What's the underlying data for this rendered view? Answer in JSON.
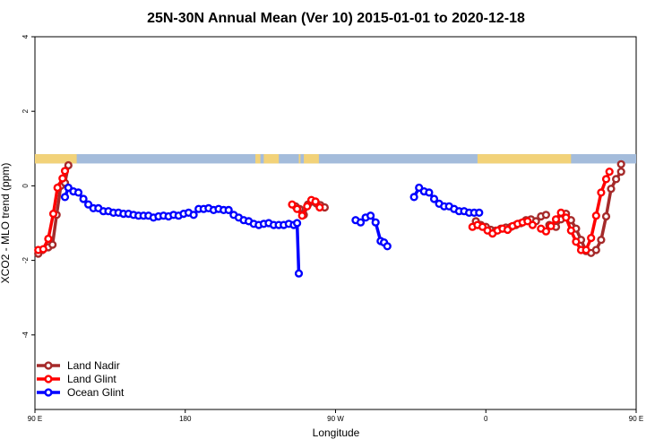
{
  "chart_data": {
    "type": "line",
    "title": "25N-30N Annual Mean (Ver 10)   2015-01-01 to 2020-12-18",
    "xlabel": "Longitude",
    "ylabel": "XCO2 - MLO trend (ppm)",
    "xlim": [
      90,
      450
    ],
    "ylim": [
      -6,
      4
    ],
    "x_ticks": [
      {
        "value": 90,
        "label": "90 E"
      },
      {
        "value": 180,
        "label": "180"
      },
      {
        "value": 270,
        "label": "90 W"
      },
      {
        "value": 360,
        "label": "0"
      },
      {
        "value": 450,
        "label": "90 E"
      },
      {
        "value": 540,
        "label": "180"
      }
    ],
    "y_ticks": [
      {
        "value": 4,
        "label": "4"
      },
      {
        "value": 2,
        "label": "2"
      },
      {
        "value": 0,
        "label": "0"
      },
      {
        "value": -2,
        "label": "-2"
      },
      {
        "value": -4,
        "label": "-4"
      }
    ],
    "land_ocean_band": {
      "ymin": 0.6,
      "ymax": 0.85,
      "ocean_color": "#A4BCDB",
      "land_color": "#F2D279",
      "land_spans": [
        [
          90,
          115
        ],
        [
          222,
          225
        ],
        [
          227,
          236
        ],
        [
          248,
          249
        ],
        [
          251,
          260
        ],
        [
          355,
          411
        ],
        [
          451,
          471
        ],
        [
          636,
          655
        ]
      ]
    },
    "legend": {
      "placement": "bottom-left",
      "entries": [
        "Land Nadir",
        "Land Glint",
        "Ocean Glint"
      ]
    },
    "series": [
      {
        "name": "Land Nadir",
        "color": "#A52A2A",
        "segments": [
          [
            [
              92,
              -1.82
            ],
            [
              94.5,
              -1.72
            ],
            [
              98,
              -1.65
            ],
            [
              100.5,
              -1.58
            ],
            [
              103,
              -0.78
            ],
            [
              105.5,
              0.0
            ],
            [
              108,
              0.08
            ],
            [
              110,
              0.55
            ]
          ],
          [
            [
              246,
              -0.55
            ],
            [
              248.5,
              -0.62
            ],
            [
              251,
              -0.78
            ],
            [
              253.5,
              -0.5
            ],
            [
              256,
              -0.42
            ],
            [
              258.5,
              -0.47
            ],
            [
              261,
              -0.52
            ],
            [
              263.5,
              -0.58
            ]
          ],
          [
            [
              354,
              -0.95
            ],
            [
              357,
              -1.05
            ],
            [
              360,
              -1.1
            ],
            [
              363,
              -1.18
            ],
            [
              366,
              -1.2
            ],
            [
              369,
              -1.15
            ],
            [
              372,
              -1.12
            ],
            [
              375,
              -1.1
            ],
            [
              378,
              -1.05
            ],
            [
              381,
              -1.0
            ],
            [
              384,
              -0.92
            ],
            [
              387,
              -0.9
            ],
            [
              390,
              -0.95
            ],
            [
              393,
              -0.82
            ],
            [
              396,
              -0.78
            ]
          ],
          [
            [
              398,
              -1.05
            ],
            [
              402,
              -1.1
            ],
            [
              405,
              -0.9
            ],
            [
              408,
              -0.75
            ],
            [
              411,
              -0.92
            ],
            [
              414,
              -1.15
            ],
            [
              417,
              -1.45
            ],
            [
              420,
              -1.75
            ],
            [
              423,
              -1.8
            ],
            [
              426,
              -1.72
            ],
            [
              429,
              -1.45
            ],
            [
              432,
              -0.82
            ],
            [
              435,
              -0.08
            ],
            [
              438,
              0.18
            ],
            [
              441,
              0.38
            ],
            [
              441,
              0.58
            ]
          ]
        ]
      },
      {
        "name": "Land Glint",
        "color": "#FF0000",
        "segments": [
          [
            [
              92,
              -1.72
            ],
            [
              95,
              -1.7
            ],
            [
              98,
              -1.42
            ],
            [
              101,
              -0.75
            ],
            [
              103.5,
              -0.05
            ],
            [
              106.5,
              0.2
            ],
            [
              108,
              0.4
            ]
          ],
          [
            [
              244,
              -0.5
            ],
            [
              247,
              -0.62
            ],
            [
              250,
              -0.8
            ],
            [
              253,
              -0.55
            ],
            [
              255.5,
              -0.38
            ],
            [
              258,
              -0.42
            ],
            [
              260.5,
              -0.58
            ]
          ],
          [
            [
              352,
              -1.1
            ],
            [
              355,
              -1.05
            ],
            [
              358,
              -1.1
            ],
            [
              361,
              -1.2
            ],
            [
              364,
              -1.28
            ],
            [
              367,
              -1.2
            ],
            [
              370,
              -1.15
            ],
            [
              373,
              -1.18
            ],
            [
              376,
              -1.08
            ],
            [
              379,
              -1.02
            ],
            [
              382,
              -0.98
            ],
            [
              385,
              -0.95
            ],
            [
              388,
              -1.05
            ]
          ],
          [
            [
              393,
              -1.15
            ],
            [
              396,
              -1.22
            ],
            [
              399,
              -1.08
            ],
            [
              402,
              -0.9
            ],
            [
              405,
              -0.72
            ],
            [
              408,
              -0.85
            ],
            [
              411,
              -1.2
            ],
            [
              414,
              -1.5
            ],
            [
              417,
              -1.72
            ],
            [
              420,
              -1.72
            ],
            [
              423,
              -1.4
            ],
            [
              426,
              -0.8
            ],
            [
              429,
              -0.18
            ],
            [
              432,
              0.18
            ],
            [
              434,
              0.38
            ]
          ]
        ]
      },
      {
        "name": "Ocean Glint",
        "color": "#0000FF",
        "segments": [
          [
            [
              108,
              -0.3
            ],
            [
              110,
              -0.05
            ],
            [
              113,
              -0.15
            ],
            [
              116,
              -0.18
            ],
            [
              119,
              -0.35
            ],
            [
              122,
              -0.5
            ],
            [
              125,
              -0.6
            ],
            [
              128,
              -0.6
            ],
            [
              131,
              -0.68
            ],
            [
              134,
              -0.68
            ],
            [
              137,
              -0.72
            ],
            [
              140,
              -0.72
            ],
            [
              143,
              -0.75
            ],
            [
              146,
              -0.75
            ],
            [
              149,
              -0.78
            ],
            [
              152,
              -0.8
            ],
            [
              155,
              -0.8
            ],
            [
              158,
              -0.8
            ],
            [
              161,
              -0.85
            ],
            [
              164,
              -0.82
            ],
            [
              167,
              -0.8
            ],
            [
              170,
              -0.82
            ],
            [
              173,
              -0.78
            ],
            [
              176,
              -0.8
            ],
            [
              179,
              -0.75
            ],
            [
              182,
              -0.72
            ],
            [
              185,
              -0.78
            ],
            [
              188,
              -0.62
            ],
            [
              191,
              -0.62
            ],
            [
              194,
              -0.6
            ],
            [
              197,
              -0.65
            ],
            [
              200,
              -0.62
            ],
            [
              203,
              -0.65
            ],
            [
              206,
              -0.65
            ],
            [
              209,
              -0.78
            ],
            [
              212,
              -0.85
            ],
            [
              215,
              -0.92
            ],
            [
              218,
              -0.95
            ],
            [
              221,
              -1.02
            ],
            [
              224,
              -1.05
            ],
            [
              227,
              -1.02
            ],
            [
              230,
              -1.0
            ],
            [
              233,
              -1.05
            ],
            [
              236,
              -1.05
            ],
            [
              239,
              -1.05
            ],
            [
              242,
              -1.02
            ],
            [
              245,
              -1.05
            ],
            [
              247,
              -1.0
            ],
            [
              248,
              -2.35
            ]
          ],
          [
            [
              282,
              -0.92
            ],
            [
              285,
              -0.98
            ],
            [
              288,
              -0.85
            ],
            [
              291,
              -0.8
            ],
            [
              294,
              -0.98
            ],
            [
              297,
              -1.48
            ],
            [
              299,
              -1.52
            ],
            [
              301,
              -1.62
            ]
          ],
          [
            [
              317,
              -0.3
            ],
            [
              320,
              -0.05
            ],
            [
              323,
              -0.15
            ],
            [
              326,
              -0.18
            ],
            [
              329,
              -0.35
            ],
            [
              332,
              -0.48
            ],
            [
              335,
              -0.55
            ],
            [
              338,
              -0.55
            ],
            [
              341,
              -0.62
            ],
            [
              344,
              -0.68
            ],
            [
              347,
              -0.68
            ],
            [
              350,
              -0.72
            ],
            [
              353,
              -0.72
            ],
            [
              356,
              -0.72
            ]
          ]
        ]
      }
    ]
  }
}
